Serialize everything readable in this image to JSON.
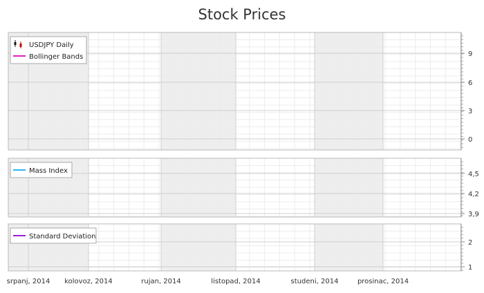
{
  "chart_data": {
    "type": "line",
    "title": "Stock Prices",
    "x": {
      "ticks": [
        "srpanj, 2014",
        "kolovoz, 2014",
        "rujan, 2014",
        "listopad, 2014",
        "studeni, 2014",
        "prosinac, 2014"
      ],
      "shaded_bands": [
        [
          "srpanj, 2014",
          "kolovoz, 2014"
        ],
        [
          "rujan, 2014",
          "listopad, 2014"
        ],
        [
          "studeni, 2014",
          "prosinac, 2014"
        ]
      ]
    },
    "panes": [
      {
        "legend": [
          {
            "label": "USDJPY Daily",
            "icon": "candlestick-icon",
            "color": "#cc0000"
          },
          {
            "label": "Bollinger Bands",
            "icon": "line-swatch",
            "color": "#e020c8"
          }
        ],
        "y_ticks": [
          "0",
          "3",
          "6",
          "9"
        ],
        "ylim": [
          -1,
          11
        ],
        "series": []
      },
      {
        "legend": [
          {
            "label": "Mass Index",
            "icon": "line-swatch",
            "color": "#29b6f6"
          }
        ],
        "y_ticks": [
          "3,9",
          "4,2",
          "4,5"
        ],
        "ylim": [
          3.9,
          4.6
        ],
        "series": []
      },
      {
        "legend": [
          {
            "label": "Standard Deviation",
            "icon": "line-swatch",
            "color": "#9b1fd8"
          }
        ],
        "y_ticks": [
          "1",
          "2"
        ],
        "ylim": [
          0.9,
          2.6
        ],
        "series": []
      }
    ],
    "grid": true,
    "legend_position": "top-left"
  }
}
